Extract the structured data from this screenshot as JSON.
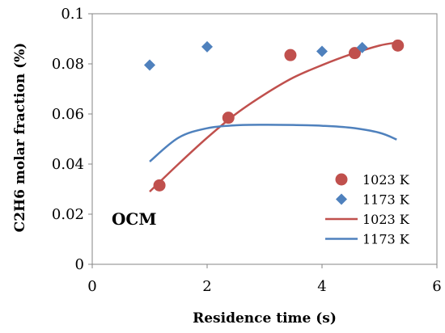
{
  "chart_data": {
    "type": "scatter",
    "xlabel": "Residence time (s)",
    "ylabel": "C2H6 molar fraction (%)",
    "xlim": [
      0,
      6
    ],
    "ylim": [
      0,
      0.1
    ],
    "x_ticks": [
      0,
      2,
      4,
      6
    ],
    "y_ticks": [
      0,
      0.02,
      0.04,
      0.06,
      0.08,
      0.1
    ],
    "x_tick_labels": [
      "0",
      "2",
      "4",
      "6"
    ],
    "y_tick_labels": [
      "0",
      "0.02",
      "0.04",
      "0.06",
      "0.08",
      "0.1"
    ],
    "grid": false,
    "legend_position": "right",
    "annotation": "OCM",
    "series": [
      {
        "name": "1023 K",
        "kind": "scatter",
        "marker": "circle",
        "color": "#C0504D",
        "x": [
          1.17,
          2.37,
          3.45,
          4.57,
          5.32
        ],
        "y": [
          0.0315,
          0.0585,
          0.0835,
          0.0843,
          0.0873
        ]
      },
      {
        "name": "1173 K",
        "kind": "scatter",
        "marker": "diamond",
        "color": "#4F81BD",
        "x": [
          1.0,
          2.0,
          4.0,
          4.7
        ],
        "y": [
          0.0795,
          0.0868,
          0.085,
          0.0865
        ]
      },
      {
        "name": "1023 K",
        "kind": "line",
        "color": "#C0504D",
        "x": [
          1.0,
          1.5,
          2.0,
          2.5,
          3.0,
          3.5,
          4.0,
          4.5,
          5.0,
          5.3
        ],
        "y": [
          0.029,
          0.04,
          0.0505,
          0.06,
          0.0678,
          0.0745,
          0.0795,
          0.0838,
          0.0873,
          0.0885
        ]
      },
      {
        "name": "1173 K",
        "kind": "line",
        "color": "#4F81BD",
        "x": [
          1.0,
          1.5,
          2.0,
          2.5,
          3.0,
          3.5,
          4.0,
          4.5,
          5.0,
          5.3
        ],
        "y": [
          0.041,
          0.0505,
          0.0543,
          0.0555,
          0.0557,
          0.0556,
          0.0553,
          0.0545,
          0.0525,
          0.0498
        ]
      }
    ]
  }
}
